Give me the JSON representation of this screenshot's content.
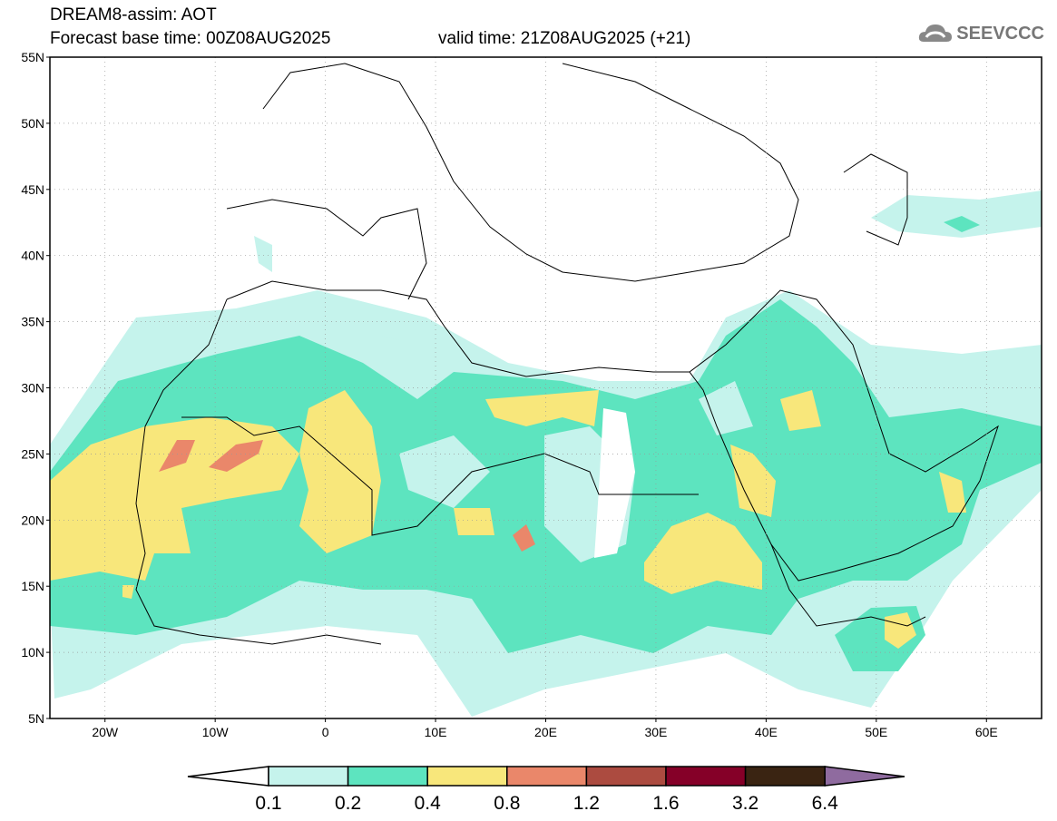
{
  "title": {
    "line1": "DREAM8-assim: AOT",
    "base_time": "Forecast base time: 00Z08AUG2025",
    "valid_time": "valid time: 21Z08AUG2025 (+21)"
  },
  "logo": {
    "text": "SEEVCCC",
    "icon": "cloud-icon"
  },
  "map": {
    "lat_labels": [
      "55N",
      "50N",
      "45N",
      "40N",
      "35N",
      "30N",
      "25N",
      "20N",
      "15N",
      "10N",
      "5N"
    ],
    "lon_labels": [
      "20W",
      "10W",
      "0",
      "10E",
      "20E",
      "30E",
      "40E",
      "50E",
      "60E"
    ],
    "lon_range": [
      -25,
      65
    ],
    "lat_range": [
      5,
      55
    ]
  },
  "colorbar": {
    "labels": [
      "0.1",
      "0.2",
      "0.4",
      "0.8",
      "1.2",
      "1.6",
      "3.2",
      "6.4"
    ],
    "colors": [
      "#c5f3ec",
      "#5de4bf",
      "#f8e77b",
      "#ea876a",
      "#ac4b40",
      "#850028",
      "#3a2412",
      "#8f6b9f"
    ]
  }
}
